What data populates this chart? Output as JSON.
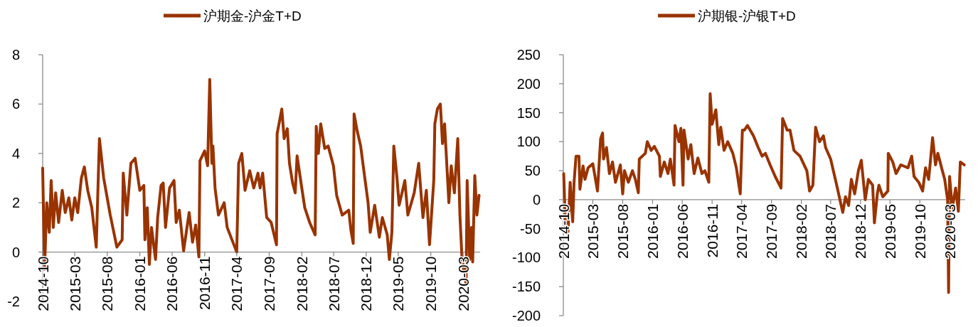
{
  "chart_data": [
    {
      "type": "line",
      "legend": "top",
      "xlim": [
        "2014-10",
        "2020-05-20"
      ],
      "ylim": [
        -2,
        8
      ],
      "yticks": [
        -2,
        0,
        2,
        4,
        6,
        8
      ],
      "xticks": [
        "2014-10",
        "2015-03",
        "2015-08",
        "2016-01",
        "2016-06",
        "2016-11",
        "2017-04",
        "2017-09",
        "2018-02",
        "2018-07",
        "2018-12",
        "2019-05",
        "2019-10",
        "2020-03"
      ],
      "x": [
        "2014-10-01",
        "2014-10-10",
        "2014-10-20",
        "2014-11-01",
        "2014-11-10",
        "2014-11-20",
        "2014-12-01",
        "2014-12-15",
        "2015-01-01",
        "2015-01-15",
        "2015-02-01",
        "2015-02-15",
        "2015-03-01",
        "2015-03-15",
        "2015-04-01",
        "2015-04-15",
        "2015-05-01",
        "2015-05-20",
        "2015-06-10",
        "2015-06-25",
        "2015-07-15",
        "2015-08-15",
        "2015-09-15",
        "2015-10-10",
        "2015-10-15",
        "2015-11-01",
        "2015-11-20",
        "2015-12-10",
        "2016-01-01",
        "2016-01-20",
        "2016-01-25",
        "2016-02-05",
        "2016-02-15",
        "2016-02-25",
        "2016-03-15",
        "2016-03-25",
        "2016-04-10",
        "2016-04-20",
        "2016-05-01",
        "2016-05-20",
        "2016-06-10",
        "2016-06-20",
        "2016-07-05",
        "2016-07-25",
        "2016-08-20",
        "2016-09-05",
        "2016-09-20",
        "2016-10-05",
        "2016-10-10",
        "2016-11-01",
        "2016-11-15",
        "2016-11-25",
        "2016-12-05",
        "2016-12-10",
        "2016-12-20",
        "2017-01-05",
        "2017-02-01",
        "2017-02-15",
        "2017-04-01",
        "2017-04-10",
        "2017-04-25",
        "2017-05-10",
        "2017-06-01",
        "2017-06-20",
        "2017-07-10",
        "2017-07-20",
        "2017-08-01",
        "2017-08-20",
        "2017-09-10",
        "2017-10-05",
        "2017-10-08",
        "2017-10-30",
        "2017-11-10",
        "2017-11-25",
        "2017-12-05",
        "2017-12-20",
        "2018-01-01",
        "2018-01-10",
        "2018-02-01",
        "2018-02-15",
        "2018-03-10",
        "2018-04-05",
        "2018-04-10",
        "2018-04-20",
        "2018-05-01",
        "2018-05-20",
        "2018-06-05",
        "2018-06-30",
        "2018-07-15",
        "2018-08-10",
        "2018-09-10",
        "2018-09-20",
        "2018-10-01",
        "2018-10-05",
        "2018-10-20",
        "2018-11-05",
        "2018-11-20",
        "2018-12-10",
        "2018-12-20",
        "2019-01-10",
        "2019-02-01",
        "2019-02-15",
        "2019-03-10",
        "2019-03-20",
        "2019-04-01",
        "2019-04-10",
        "2019-04-25",
        "2019-05-05",
        "2019-06-01",
        "2019-06-15",
        "2019-07-15",
        "2019-08-05",
        "2019-08-25",
        "2019-09-10",
        "2019-09-25",
        "2019-10-15",
        "2019-10-20",
        "2019-11-01",
        "2019-11-15",
        "2019-11-25",
        "2019-12-05",
        "2019-12-25",
        "2020-01-05",
        "2020-01-20",
        "2020-02-05",
        "2020-02-15",
        "2020-02-25",
        "2020-03-15",
        "2020-03-20",
        "2020-04-01",
        "2020-04-10",
        "2020-04-15",
        "2020-04-25",
        "2020-05-05",
        "2020-05-15"
      ],
      "series": [
        {
          "name": "沪期金-沪金T+D",
          "color": "#993300",
          "values": [
            3.4,
            -0.7,
            2.0,
            0.8,
            2.9,
            1.0,
            2.4,
            1.2,
            2.5,
            1.6,
            2.2,
            1.3,
            2.2,
            1.6,
            3.0,
            3.45,
            2.5,
            1.8,
            0.2,
            4.6,
            3.0,
            1.5,
            0.2,
            0.5,
            3.2,
            1.5,
            3.6,
            3.8,
            2.5,
            2.7,
            0.5,
            1.8,
            -0.5,
            1.0,
            -0.3,
            1.4,
            2.7,
            2.8,
            1.0,
            2.6,
            2.9,
            1.2,
            1.7,
            0.05,
            1.6,
            0.4,
            1.1,
            -0.2,
            3.7,
            4.1,
            3.5,
            7.0,
            3.6,
            4.3,
            2.6,
            1.5,
            2.0,
            1.0,
            0.0,
            3.6,
            4.0,
            2.5,
            3.3,
            2.6,
            3.2,
            2.6,
            3.2,
            1.4,
            1.2,
            0.3,
            4.8,
            5.8,
            4.6,
            5.0,
            3.6,
            2.8,
            2.4,
            3.9,
            2.6,
            1.8,
            1.2,
            0.7,
            5.1,
            4.0,
            5.2,
            4.2,
            4.3,
            3.5,
            2.3,
            1.5,
            1.7,
            0.9,
            0.35,
            5.6,
            4.9,
            4.3,
            3.3,
            2.0,
            0.8,
            1.9,
            0.6,
            1.4,
            0.7,
            -0.3,
            0.8,
            4.3,
            3.0,
            1.9,
            2.9,
            1.5,
            2.4,
            3.6,
            1.4,
            2.5,
            0.3,
            2.9,
            5.2,
            5.8,
            6.0,
            4.4,
            5.2,
            2.0,
            3.5,
            2.4,
            4.6,
            1.5,
            -0.3,
            -1.3,
            2.9,
            -0.3,
            1.0,
            -0.4,
            3.1,
            1.5,
            2.3
          ]
        }
      ]
    },
    {
      "type": "line",
      "legend": "top",
      "xlim": [
        "2014-10",
        "2020-05-20"
      ],
      "ylim": [
        -200,
        250
      ],
      "yticks": [
        -200,
        -150,
        -100,
        -50,
        0,
        50,
        100,
        150,
        200,
        250
      ],
      "xticks": [
        "2014-10",
        "2015-03",
        "2015-08",
        "2016-01",
        "2016-06",
        "2016-11",
        "2017-04",
        "2017-09",
        "2018-02",
        "2018-07",
        "2018-12",
        "2019-05",
        "2019-10",
        "2020-03"
      ],
      "x": [
        "2014-10-03",
        "2014-10-12",
        "2014-10-25",
        "2014-11-05",
        "2014-11-18",
        "2014-11-25",
        "2014-12-05",
        "2014-12-20",
        "2014-12-25",
        "2015-01-10",
        "2015-01-20",
        "2015-02-05",
        "2015-03-01",
        "2015-03-25",
        "2015-04-10",
        "2015-04-20",
        "2015-04-25",
        "2015-05-10",
        "2015-05-25",
        "2015-06-10",
        "2015-06-25",
        "2015-07-20",
        "2015-08-01",
        "2015-08-10",
        "2015-08-30",
        "2015-09-20",
        "2015-10-05",
        "2015-10-20",
        "2015-10-25",
        "2015-11-25",
        "2015-12-05",
        "2015-12-25",
        "2016-01-10",
        "2016-02-05",
        "2016-02-10",
        "2016-03-01",
        "2016-03-20",
        "2016-04-01",
        "2016-04-20",
        "2016-04-25",
        "2016-05-15",
        "2016-05-25",
        "2016-06-05",
        "2016-06-10",
        "2016-07-01",
        "2016-07-15",
        "2016-08-01",
        "2016-08-20",
        "2016-09-10",
        "2016-09-25",
        "2016-10-15",
        "2016-10-22",
        "2016-11-01",
        "2016-11-20",
        "2016-12-05",
        "2016-12-15",
        "2017-01-01",
        "2017-01-20",
        "2017-02-15",
        "2017-03-05",
        "2017-03-25",
        "2017-04-05",
        "2017-04-15",
        "2017-05-01",
        "2017-06-01",
        "2017-06-25",
        "2017-07-15",
        "2017-08-01",
        "2017-08-25",
        "2017-09-20",
        "2017-10-20",
        "2017-10-28",
        "2017-11-20",
        "2017-12-05",
        "2017-12-25",
        "2018-01-25",
        "2018-03-01",
        "2018-03-15",
        "2018-04-01",
        "2018-04-15",
        "2018-05-05",
        "2018-05-25",
        "2018-06-05",
        "2018-07-01",
        "2018-08-01",
        "2018-09-01",
        "2018-09-15",
        "2018-10-01",
        "2018-10-15",
        "2018-11-01",
        "2018-11-20",
        "2018-12-05",
        "2018-12-25",
        "2019-01-10",
        "2019-02-01",
        "2019-02-10",
        "2019-02-25",
        "2019-03-05",
        "2019-03-25",
        "2019-04-20",
        "2019-04-22",
        "2019-05-15",
        "2019-06-01",
        "2019-06-25",
        "2019-08-01",
        "2019-08-20",
        "2019-09-01",
        "2019-09-25",
        "2019-10-15",
        "2019-10-30",
        "2019-11-15",
        "2019-12-05",
        "2019-12-20",
        "2020-01-01",
        "2020-01-20",
        "2020-02-05",
        "2020-02-20",
        "2020-02-25",
        "2020-03-01",
        "2020-03-15",
        "2020-04-01",
        "2020-04-15",
        "2020-04-25",
        "2020-05-15"
      ],
      "series": [
        {
          "name": "沪期银-沪银T+D",
          "color": "#993300",
          "values": [
            45,
            -50,
            -55,
            30,
            -38,
            30,
            75,
            75,
            18,
            58,
            35,
            55,
            62,
            15,
            105,
            115,
            70,
            90,
            45,
            65,
            30,
            60,
            10,
            50,
            30,
            50,
            35,
            12,
            70,
            80,
            100,
            85,
            92,
            75,
            40,
            65,
            45,
            70,
            25,
            128,
            100,
            123,
            25,
            120,
            70,
            95,
            45,
            72,
            45,
            50,
            30,
            183,
            130,
            155,
            95,
            125,
            85,
            100,
            80,
            55,
            10,
            120,
            120,
            128,
            110,
            90,
            75,
            80,
            60,
            40,
            20,
            140,
            120,
            120,
            85,
            75,
            50,
            15,
            25,
            125,
            100,
            110,
            90,
            70,
            25,
            -22,
            5,
            -10,
            35,
            10,
            50,
            68,
            0,
            35,
            25,
            -40,
            10,
            25,
            5,
            15,
            80,
            65,
            45,
            60,
            55,
            75,
            40,
            30,
            15,
            55,
            35,
            107,
            60,
            80,
            55,
            35,
            0,
            -160,
            40,
            -15,
            20,
            -20,
            65,
            60
          ]
        }
      ]
    }
  ]
}
